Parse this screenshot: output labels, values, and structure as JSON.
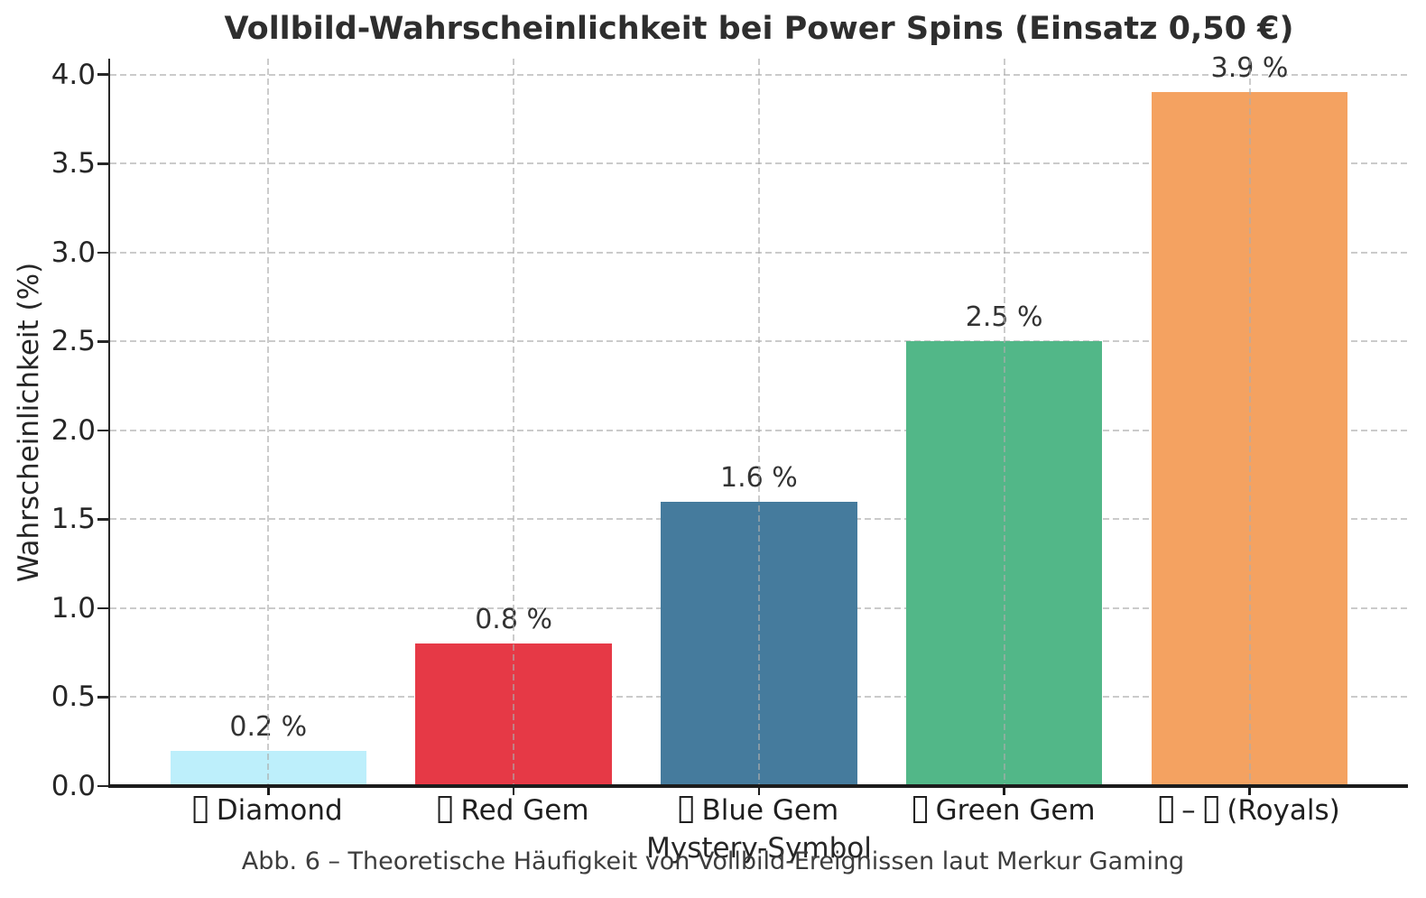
{
  "figure": {
    "caption": "Abb. 6 – Theoretische Häufigkeit von Vollbild-Ereignissen laut Merkur Gaming"
  },
  "chart_data": {
    "type": "bar",
    "title": "Vollbild-Wahrscheinlichkeit bei Power Spins (Einsatz 0,50 €)",
    "xlabel": "Mystery-Symbol",
    "ylabel": "Wahrscheinlichkeit (%)",
    "categories": [
      "□ Diamond",
      "□ Red Gem",
      "□ Blue Gem",
      "□ Green Gem",
      "□ – □ (Royals)"
    ],
    "values": [
      0.2,
      0.8,
      1.6,
      2.5,
      3.9
    ],
    "value_labels": [
      "0.2 %",
      "0.8 %",
      "1.6 %",
      "2.5 %",
      "3.9 %"
    ],
    "bar_colors": [
      "#BDEFFB",
      "#E63946",
      "#457B9D",
      "#52B788",
      "#F4A261"
    ],
    "yticks": [
      0.0,
      0.5,
      1.0,
      1.5,
      2.0,
      2.5,
      3.0,
      3.5,
      4.0
    ],
    "ytick_labels": [
      "0.0",
      "0.5",
      "1.0",
      "1.5",
      "2.0",
      "2.5",
      "3.0",
      "3.5",
      "4.0"
    ],
    "ylim": [
      0,
      4.09
    ],
    "grid": "dashed-both-axes",
    "legend": "none"
  }
}
